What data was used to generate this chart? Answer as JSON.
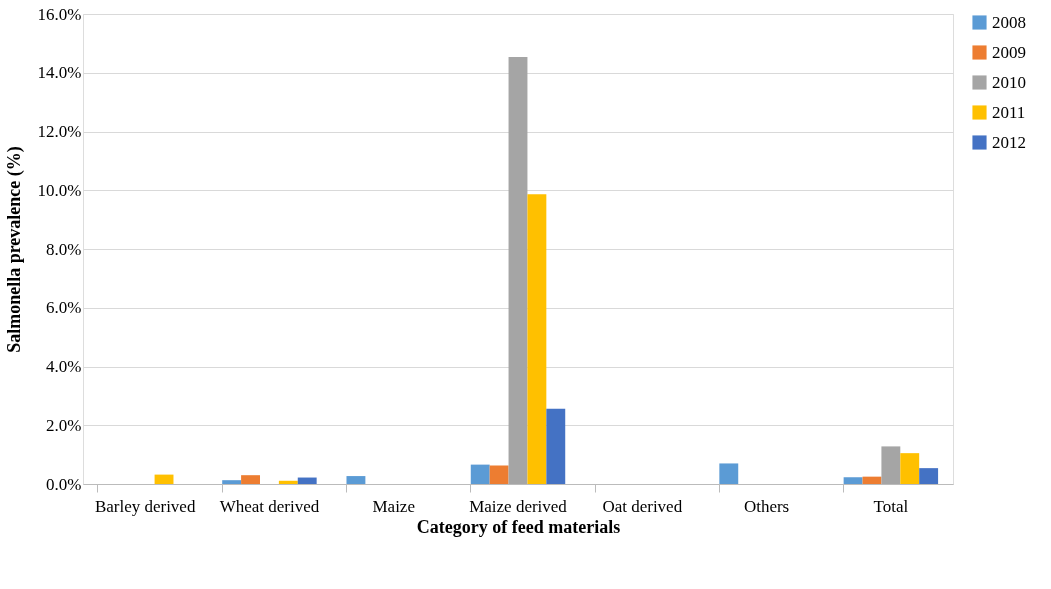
{
  "chart_data": {
    "type": "bar",
    "xlabel": "Category of feed materials",
    "ylabel": "Salmonella  prevalence (%)",
    "categories": [
      "Barley derived",
      "Wheat derived",
      "Maize",
      "Maize derived",
      "Oat derived",
      "Others",
      "Total"
    ],
    "series": [
      {
        "name": "2008",
        "color": "#5b9bd5",
        "values": [
          null,
          0.13,
          0.27,
          0.66,
          null,
          0.7,
          0.23
        ]
      },
      {
        "name": "2009",
        "color": "#ed7d31",
        "values": [
          null,
          0.3,
          null,
          0.63,
          null,
          null,
          0.25
        ]
      },
      {
        "name": "2010",
        "color": "#a5a5a5",
        "values": [
          null,
          null,
          null,
          14.54,
          null,
          null,
          1.28
        ]
      },
      {
        "name": "2011",
        "color": "#ffc000",
        "values": [
          0.32,
          0.11,
          null,
          9.86,
          null,
          null,
          1.05
        ]
      },
      {
        "name": "2012",
        "color": "#4472c4",
        "values": [
          null,
          0.22,
          null,
          2.56,
          null,
          null,
          0.54
        ]
      }
    ],
    "ylim": [
      0,
      16
    ],
    "yticks": [
      {
        "value": 0,
        "label": "0.0%"
      },
      {
        "value": 2,
        "label": "2.0%"
      },
      {
        "value": 4,
        "label": "4.0%"
      },
      {
        "value": 6,
        "label": "6.0%"
      },
      {
        "value": 8,
        "label": "8.0%"
      },
      {
        "value": 10,
        "label": "10.0%"
      },
      {
        "value": 12,
        "label": "12.0%"
      },
      {
        "value": 14,
        "label": "14.0%"
      },
      {
        "value": 16,
        "label": "16.0%"
      }
    ],
    "grid": "y",
    "legend": "right"
  }
}
